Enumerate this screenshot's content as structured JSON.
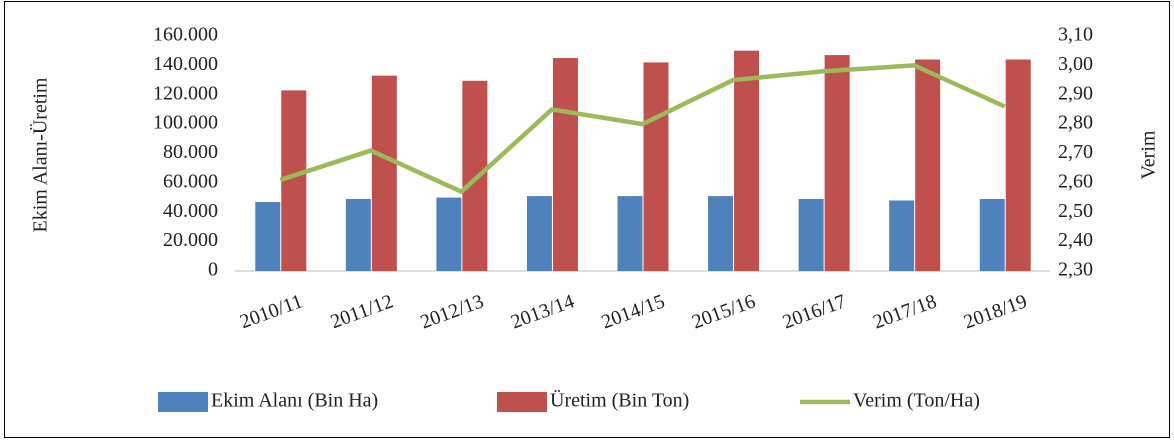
{
  "chart_data": {
    "type": "bar",
    "categories": [
      "2010/11",
      "2011/12",
      "2012/13",
      "2013/14",
      "2014/15",
      "2015/16",
      "2016/17",
      "2017/18",
      "2018/19"
    ],
    "series": [
      {
        "name": "Ekim Alanı (Bin Ha)",
        "type": "bar",
        "color": "#4f81bd",
        "values": [
          47000,
          49000,
          50000,
          51000,
          51000,
          51000,
          49000,
          48000,
          49000
        ]
      },
      {
        "name": "Üretim (Bin Ton)",
        "type": "bar",
        "color": "#c0504d",
        "values": [
          123000,
          133000,
          129500,
          145000,
          142000,
          150000,
          147000,
          144000,
          144000
        ]
      },
      {
        "name": "Verim (Ton/Ha)",
        "type": "line",
        "axis": "y2",
        "color": "#9bbb59",
        "values": [
          2.61,
          2.71,
          2.57,
          2.85,
          2.8,
          2.95,
          2.98,
          3.0,
          2.86
        ]
      }
    ],
    "ylabel": "Ekim Alanı-Üretim",
    "y2label": "Verim",
    "ylim": [
      0,
      160000
    ],
    "yticks": [
      0,
      {
        "value": 20000,
        "label": "20.000"
      },
      {
        "value": 40000,
        "label": "40.000"
      },
      {
        "value": 60000,
        "label": "60.000"
      },
      {
        "value": 80000,
        "label": "80.000"
      },
      {
        "value": 100000,
        "label": "100.000"
      },
      {
        "value": 120000,
        "label": "120.000"
      },
      {
        "value": 140000,
        "label": "140.000"
      },
      {
        "value": 160000,
        "label": "160.000"
      }
    ],
    "y2lim": [
      2.3,
      3.1
    ],
    "y2ticks": [
      {
        "value": 2.3,
        "label": "2,30"
      },
      {
        "value": 2.4,
        "label": "2,40"
      },
      {
        "value": 2.5,
        "label": "2,50"
      },
      {
        "value": 2.6,
        "label": "2,60"
      },
      {
        "value": 2.7,
        "label": "2,70"
      },
      {
        "value": 2.8,
        "label": "2,80"
      },
      {
        "value": 2.9,
        "label": "2,90"
      },
      {
        "value": 3.0,
        "label": "3,00"
      },
      {
        "value": 3.1,
        "label": "3,10"
      }
    ],
    "legend": "bottom",
    "grid": false
  }
}
